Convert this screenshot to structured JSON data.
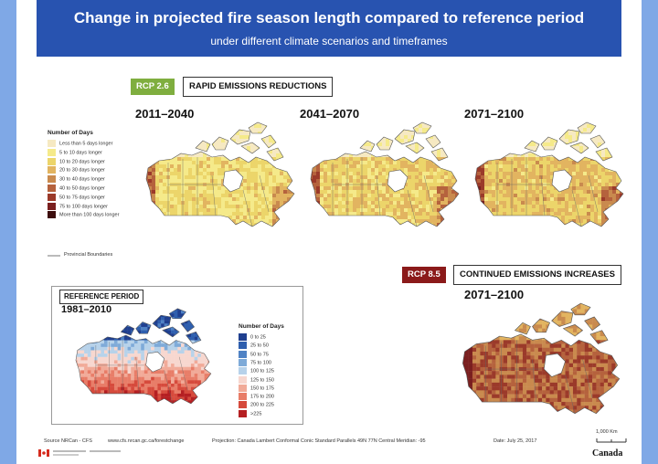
{
  "header": {
    "title": "Change in projected fire season length compared to reference period",
    "subtitle": "under different climate scenarios and timeframes"
  },
  "rcp26": {
    "tag": "RCP 2.6",
    "label": "RAPID EMISSIONS REDUCTIONS",
    "color": "#7fae3f",
    "periods": [
      "2011–2040",
      "2041–2070",
      "2071–2100"
    ]
  },
  "rcp85": {
    "tag": "RCP 8.5",
    "label": "CONTINUED EMISSIONS INCREASES",
    "color": "#8b1a1a",
    "period": "2071–2100"
  },
  "legend_future": {
    "title": "Number of Days",
    "items": [
      {
        "label": "Less than 5 days longer",
        "color": "#f6e9c2"
      },
      {
        "label": "5 to 10 days longer",
        "color": "#f5ea8a"
      },
      {
        "label": "10 to 20 days longer",
        "color": "#ecd56a"
      },
      {
        "label": "20 to 30 days longer",
        "color": "#e2b460"
      },
      {
        "label": "30 to 40 days longer",
        "color": "#c98a4e"
      },
      {
        "label": "40 to 50 days longer",
        "color": "#b5623d"
      },
      {
        "label": "50 to 75 days longer",
        "color": "#9b3a2a"
      },
      {
        "label": "75 to 100 days longer",
        "color": "#7a1f1f"
      },
      {
        "label": "More than 100 days longer",
        "color": "#3d0d0d"
      }
    ],
    "boundary_label": "Provincial Boundaries"
  },
  "reference": {
    "tag": "REFERENCE PERIOD",
    "period": "1981–2010",
    "legend_title": "Number of Days",
    "items": [
      {
        "label": "0 to 25",
        "color": "#1f3f8f"
      },
      {
        "label": "25 to 50",
        "color": "#2f5fae"
      },
      {
        "label": "50 to 75",
        "color": "#4f82c4"
      },
      {
        "label": "75 to 100",
        "color": "#7eaad8"
      },
      {
        "label": "100 to 125",
        "color": "#b7d2ea"
      },
      {
        "label": "125 to 150",
        "color": "#f7d7cf"
      },
      {
        "label": "150 to 175",
        "color": "#f1aa98"
      },
      {
        "label": "175 to 200",
        "color": "#e87d68"
      },
      {
        "label": "200 to 225",
        "color": "#d64a3c"
      },
      {
        "label": ">225",
        "color": "#b51f22"
      }
    ]
  },
  "footer": {
    "source": "Source   NRCan - CFS",
    "url": "www.cfs.nrcan.gc.ca/forestchange",
    "projection": "Projection: Canada Lambert Conformal Conic   Standard Parallels 49N 77N  Central Meridian: -95",
    "date": "Date: July 25, 2017",
    "scale": "1,000 Km",
    "wordmark": "Canada"
  }
}
